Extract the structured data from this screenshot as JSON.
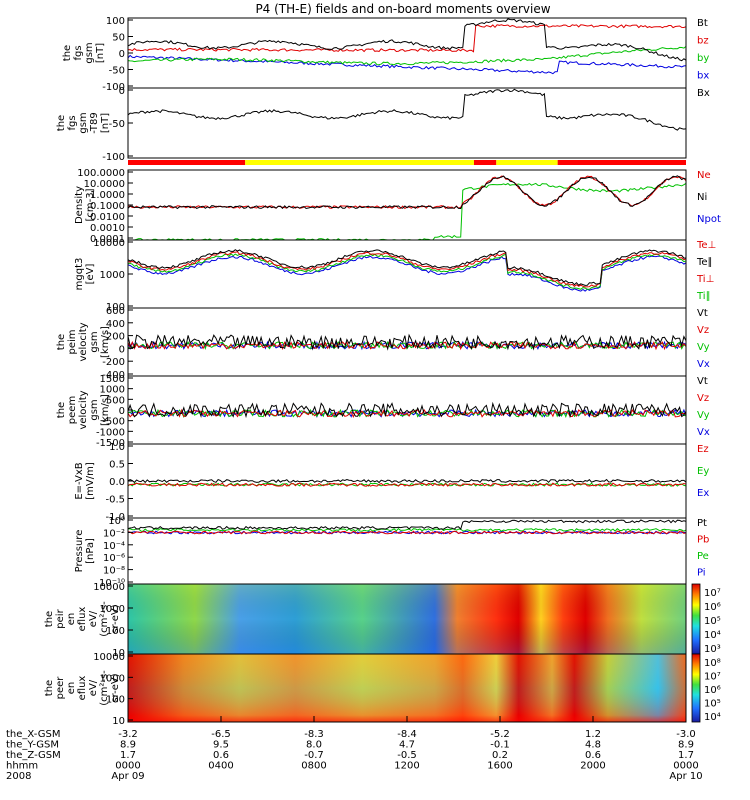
{
  "chart_data": {
    "type": "line",
    "title": "P4 (TH-E) fields and on-board moments overview",
    "x_ticks": {
      "rows": [
        {
          "label": "the_X-GSM",
          "values": [
            "-3.2",
            "-6.5",
            "-8.3",
            "-8.4",
            "-5.2",
            "1.2",
            "-3.0"
          ]
        },
        {
          "label": "the_Y-GSM",
          "values": [
            "8.9",
            "9.5",
            "8.0",
            "4.7",
            "-0.1",
            "4.8",
            "8.9"
          ]
        },
        {
          "label": "the_Z-GSM",
          "values": [
            "1.7",
            "0.6",
            "-0.7",
            "-0.5",
            "0.2",
            "0.6",
            "1.7"
          ]
        },
        {
          "label": "hhmm",
          "values": [
            "0000",
            "0400",
            "0800",
            "1200",
            "1600",
            "2000",
            "0000"
          ]
        },
        {
          "label": "2008",
          "values": [
            "Apr 09",
            "",
            "",
            "",
            "",
            "",
            "Apr 10"
          ]
        }
      ]
    },
    "panels": [
      {
        "ylabel": [
          "the",
          "fgs",
          "gsm",
          "[nT]"
        ],
        "ylim": [
          -100,
          100
        ],
        "yticks": [
          "100",
          "50",
          "0",
          "-50",
          "-100"
        ],
        "legend": [
          {
            "name": "Bt",
            "color": "#000000"
          },
          {
            "name": "bz",
            "color": "#e00000"
          },
          {
            "name": "by",
            "color": "#00c000"
          },
          {
            "name": "bx",
            "color": "#0000e0"
          }
        ]
      },
      {
        "ylabel": [
          "the",
          "fgs",
          "gsm",
          "-T89",
          "[nT]"
        ],
        "ylim": [
          -130,
          30
        ],
        "yticks": [
          "0",
          "-50",
          "-100"
        ],
        "legend": [
          {
            "name": "Bx",
            "color": "#000000"
          }
        ]
      },
      {
        "ylabel": [
          "Density",
          "[cm-3]"
        ],
        "ylim": [
          0.0001,
          100
        ],
        "scale": "log",
        "yticks": [
          "100.0000",
          "10.0000",
          "1.0000",
          "0.1000",
          "0.0100",
          "0.0010",
          "0.0001"
        ],
        "legend": [
          {
            "name": "Ne",
            "color": "#e00000"
          },
          {
            "name": "Ni",
            "color": "#000000"
          },
          {
            "name": "Npot",
            "color": "#0000e0"
          }
        ]
      },
      {
        "ylabel": [
          "mgqt3",
          "[eV]"
        ],
        "ylim": [
          30,
          10000
        ],
        "scale": "log",
        "yticks": [
          "10000",
          "1000",
          "100"
        ],
        "legend": [
          {
            "name": "Te⊥",
            "color": "#e00000"
          },
          {
            "name": "Te∥",
            "color": "#000000"
          },
          {
            "name": "Ti⊥",
            "color": "#e00000"
          },
          {
            "name": "Ti∥",
            "color": "#00c000"
          }
        ]
      },
      {
        "ylabel": [
          "the",
          "peim",
          "velocity",
          "gsm",
          "[km/s]"
        ],
        "ylim": [
          -400,
          600
        ],
        "yticks": [
          "600",
          "400",
          "200",
          "0",
          "-200",
          "-400"
        ],
        "legend": [
          {
            "name": "Vt",
            "color": "#000000"
          },
          {
            "name": "Vz",
            "color": "#e00000"
          },
          {
            "name": "Vy",
            "color": "#00c000"
          },
          {
            "name": "Vx",
            "color": "#0000e0"
          }
        ]
      },
      {
        "ylabel": [
          "the",
          "peem",
          "velocity",
          "gsm",
          "[km/s]"
        ],
        "ylim": [
          -1500,
          1500
        ],
        "yticks": [
          "1500",
          "1000",
          "500",
          "0",
          "-500",
          "-1000",
          "-1500"
        ],
        "legend": [
          {
            "name": "Vt",
            "color": "#000000"
          },
          {
            "name": "Vz",
            "color": "#e00000"
          },
          {
            "name": "Vy",
            "color": "#00c000"
          },
          {
            "name": "Vx",
            "color": "#0000e0"
          }
        ]
      },
      {
        "ylabel": [
          "E=-VxB",
          "[mV/m]"
        ],
        "ylim": [
          -1,
          1
        ],
        "yticks": [
          "1.0",
          "0.5",
          "0.0",
          "-0.5",
          "-1.0"
        ],
        "legend": [
          {
            "name": "Ez",
            "color": "#e00000"
          },
          {
            "name": "Ey",
            "color": "#00c000"
          },
          {
            "name": "Ex",
            "color": "#0000e0"
          }
        ]
      },
      {
        "ylabel": [
          "Pressure",
          "[nPa]"
        ],
        "ylim": [
          1e-10,
          1
        ],
        "scale": "log",
        "yticks": [
          "10⁰",
          "10⁻²",
          "10⁻⁴",
          "10⁻⁶",
          "10⁻⁸",
          "10⁻¹⁰"
        ],
        "legend": [
          {
            "name": "Pt",
            "color": "#000000"
          },
          {
            "name": "Pb",
            "color": "#e00000"
          },
          {
            "name": "Pe",
            "color": "#00c000"
          },
          {
            "name": "Pi",
            "color": "#0000e0"
          }
        ]
      },
      {
        "ylabel": [
          "the",
          "peir",
          "en",
          "eflux",
          "eV/",
          "(cm²-s-",
          "sr-eV)"
        ],
        "ylim": [
          10,
          20000
        ],
        "scale": "log",
        "yticks": [
          "10000",
          "1000",
          "100",
          "10"
        ],
        "colorbar": [
          "10⁷",
          "10⁶",
          "10⁵",
          "10⁴",
          "10³"
        ]
      },
      {
        "ylabel": [
          "the",
          "peer",
          "en",
          "eflux",
          "eV/",
          "(cm²-s-",
          "sr-eV)"
        ],
        "ylim": [
          7,
          25000
        ],
        "scale": "log",
        "yticks": [
          "10000",
          "1000",
          "100",
          "10"
        ],
        "colorbar": [
          "10⁸",
          "10⁷",
          "10⁶",
          "10⁵",
          "10⁴"
        ]
      }
    ],
    "mode_bar": [
      {
        "from": 0.0,
        "to": 0.21,
        "color": "#ff0000"
      },
      {
        "from": 0.21,
        "to": 0.62,
        "color": "#ffff00"
      },
      {
        "from": 0.62,
        "to": 0.66,
        "color": "#ff0000"
      },
      {
        "from": 0.66,
        "to": 0.77,
        "color": "#ffff00"
      },
      {
        "from": 0.77,
        "to": 1.0,
        "color": "#ff0000"
      }
    ]
  }
}
